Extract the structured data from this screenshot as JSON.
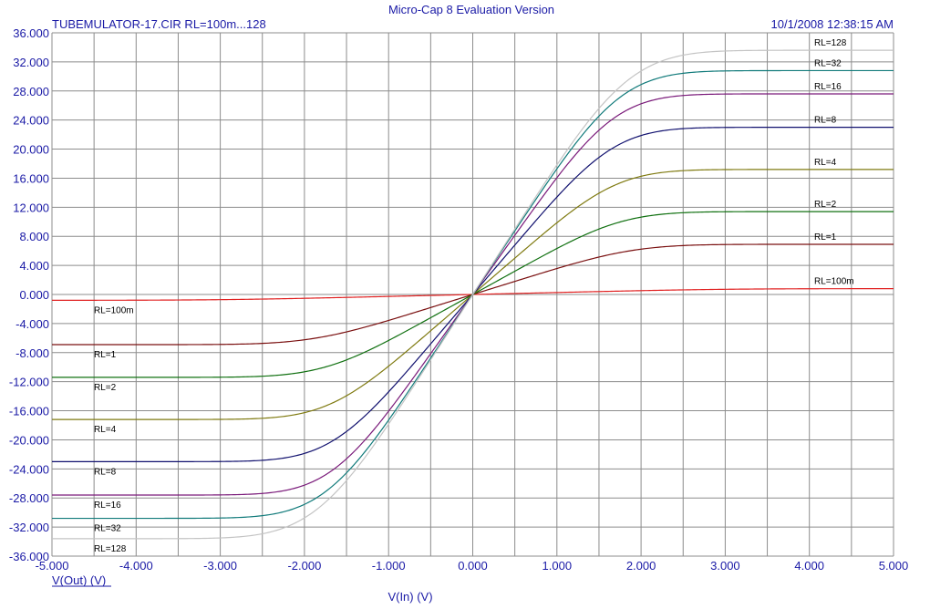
{
  "window_title": "Micro-Cap 8 Evaluation Version",
  "circuit_title": "TUBEMULATOR-17.CIR RL=100m...128",
  "timestamp": "10/1/2008 12:38:15 AM",
  "colors": {
    "text": "#1a1aa6",
    "grid": "#8c8c8c",
    "background": "#ffffff"
  },
  "chart_data": {
    "type": "line",
    "xlabel": "V(In) (V)",
    "ylabel": "V(Out) (V)",
    "xlim": [
      -5,
      5
    ],
    "ylim": [
      -36,
      36
    ],
    "xticks": [
      "-5.000",
      "-4.000",
      "-3.000",
      "-2.000",
      "-1.000",
      "0.000",
      "1.000",
      "2.000",
      "3.000",
      "4.000",
      "5.000"
    ],
    "yticks": [
      "36.000",
      "32.000",
      "28.000",
      "24.000",
      "20.000",
      "16.000",
      "12.000",
      "8.000",
      "4.000",
      "0.000",
      "-4.000",
      "-8.000",
      "-12.000",
      "-16.000",
      "-20.000",
      "-24.000",
      "-28.000",
      "-32.000",
      "-36.000"
    ],
    "grid": true,
    "series": [
      {
        "name": "RL=100m",
        "color": "#e02020",
        "sat": 0.8,
        "slope": 0.27,
        "x": [
          -5,
          -4,
          -3,
          -2,
          -1,
          0,
          1,
          2,
          3,
          4,
          5
        ],
        "y": [
          -0.8,
          -0.78,
          -0.71,
          -0.5,
          -0.26,
          0,
          0.26,
          0.5,
          0.71,
          0.78,
          0.8
        ]
      },
      {
        "name": "RL=1",
        "color": "#7a1010",
        "sat": 6.9,
        "slope": 3.6,
        "x": [
          -5,
          -4,
          -3,
          -2,
          -1,
          0,
          1,
          2,
          3,
          4,
          5
        ],
        "y": [
          -6.9,
          -6.8,
          -6.2,
          -4.9,
          -2.9,
          0,
          2.9,
          4.9,
          6.2,
          6.8,
          6.9
        ]
      },
      {
        "name": "RL=2",
        "color": "#107010",
        "sat": 11.4,
        "slope": 6.4,
        "x": [
          -5,
          -4,
          -3,
          -2,
          -1,
          0,
          1,
          2,
          3,
          4,
          5
        ],
        "y": [
          -11.4,
          -11.2,
          -10.4,
          -8.4,
          -5.1,
          0,
          5.1,
          8.4,
          10.4,
          11.2,
          11.4
        ]
      },
      {
        "name": "RL=4",
        "color": "#7f7a10",
        "sat": 17.2,
        "slope": 10.0,
        "x": [
          -5,
          -4,
          -3,
          -2,
          -1,
          0,
          1,
          2,
          3,
          4,
          5
        ],
        "y": [
          -17.2,
          -17.0,
          -16.0,
          -13.2,
          -8.2,
          0,
          8.2,
          13.2,
          16.0,
          17.0,
          17.2
        ]
      },
      {
        "name": "RL=8",
        "color": "#10106e",
        "sat": 23.0,
        "slope": 13.6,
        "x": [
          -5,
          -4,
          -3,
          -2,
          -1,
          0,
          1,
          2,
          3,
          4,
          5
        ],
        "y": [
          -23.0,
          -22.7,
          -21.4,
          -17.8,
          -11.1,
          0,
          11.1,
          17.8,
          21.4,
          22.7,
          23.0
        ]
      },
      {
        "name": "RL=16",
        "color": "#7a1a7a",
        "sat": 27.6,
        "slope": 16.3,
        "x": [
          -5,
          -4,
          -3,
          -2,
          -1,
          0,
          1,
          2,
          3,
          4,
          5
        ],
        "y": [
          -27.6,
          -27.3,
          -25.7,
          -21.4,
          -13.3,
          0,
          13.3,
          21.4,
          25.7,
          27.3,
          27.6
        ]
      },
      {
        "name": "RL=32",
        "color": "#107a7a",
        "sat": 30.8,
        "slope": 17.5,
        "x": [
          -5,
          -4,
          -3,
          -2,
          -1,
          0,
          1,
          2,
          3,
          4,
          5
        ],
        "y": [
          -30.8,
          -30.3,
          -28.5,
          -23.5,
          -14.6,
          0,
          14.6,
          23.5,
          28.5,
          30.3,
          30.8
        ]
      },
      {
        "name": "RL=128",
        "color": "#c4c4c4",
        "sat": 33.6,
        "slope": 18.0,
        "x": [
          -5,
          -4,
          -3,
          -2,
          -1,
          0,
          1,
          2,
          3,
          4,
          5
        ],
        "y": [
          -33.6,
          -33.0,
          -30.7,
          -24.9,
          -15.2,
          0,
          15.2,
          24.9,
          30.7,
          33.0,
          33.6
        ]
      }
    ]
  }
}
